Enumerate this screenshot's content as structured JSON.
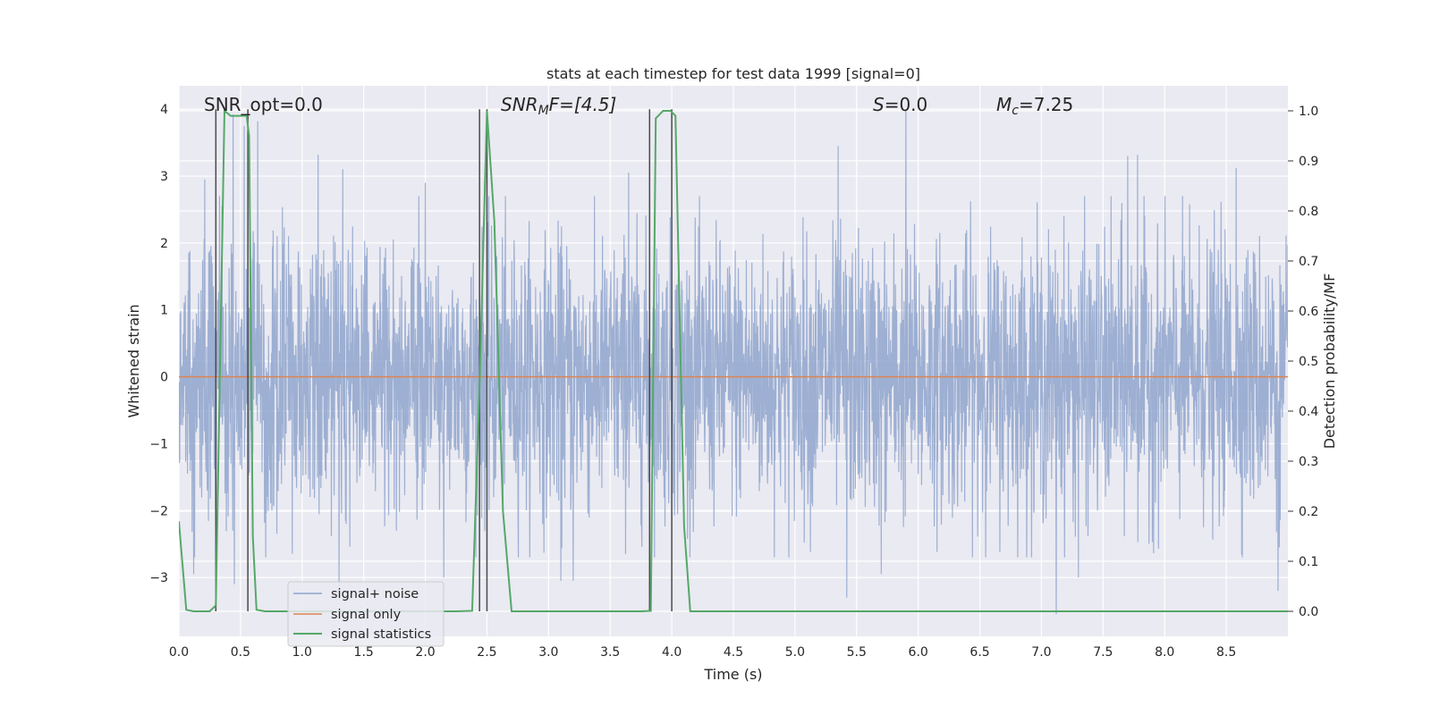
{
  "chart_data": {
    "type": "line",
    "title": "stats at each timestep for test data 1999 [signal=0]",
    "xlabel": "Time (s)",
    "ylabel_left": "Whitened strain",
    "ylabel_right": "Detection probability/MF",
    "xlim": [
      0.0,
      9.0
    ],
    "ylim_left": [
      -3.88,
      4.35
    ],
    "ylim_right": [
      -0.05,
      1.05
    ],
    "xticks": [
      "0.0",
      "0.5",
      "1.0",
      "1.5",
      "2.0",
      "2.5",
      "3.0",
      "3.5",
      "4.0",
      "4.5",
      "5.0",
      "5.5",
      "6.0",
      "6.5",
      "7.0",
      "7.5",
      "8.0",
      "8.5"
    ],
    "xtick_values": [
      0,
      0.5,
      1,
      1.5,
      2,
      2.5,
      3,
      3.5,
      4,
      4.5,
      5,
      5.5,
      6,
      6.5,
      7,
      7.5,
      8,
      8.5
    ],
    "yticks_left": [
      "4",
      "3",
      "2",
      "1",
      "0",
      "−1",
      "−2",
      "−3"
    ],
    "ytick_values_left": [
      4,
      3,
      2,
      1,
      0,
      -1,
      -2,
      -3
    ],
    "yticks_right": [
      "1.0",
      "0.9",
      "0.8",
      "0.7",
      "0.6",
      "0.5",
      "0.4",
      "0.3",
      "0.2",
      "0.1",
      "0.0"
    ],
    "ytick_values_right": [
      1.0,
      0.9,
      0.8,
      0.7,
      0.6,
      0.5,
      0.4,
      0.3,
      0.2,
      0.1,
      0.0
    ],
    "grid": true,
    "legend_position": "lower-left",
    "colors": {
      "noise": "#8fa5cc",
      "signal": "#dd8452",
      "stats": "#55a868",
      "vline": "#4a4a4a",
      "background": "#eaeaf2"
    },
    "series": [
      {
        "name": "signal+ noise",
        "axis": "left",
        "note_style": "dense whitened noise trace",
        "summary": {
          "mean": 0.0,
          "std": 1.0,
          "max": 4.0,
          "min": -3.55
        },
        "peaks": [
          {
            "x": 0.21,
            "y": 2.95
          },
          {
            "x": 0.35,
            "y": 2.55
          },
          {
            "x": 0.44,
            "y": 3.92
          },
          {
            "x": 0.53,
            "y": 3.75
          },
          {
            "x": 0.64,
            "y": 3.82
          },
          {
            "x": 1.13,
            "y": 3.32
          },
          {
            "x": 1.33,
            "y": 3.1
          },
          {
            "x": 2.0,
            "y": 2.9
          },
          {
            "x": 3.65,
            "y": 3.05
          },
          {
            "x": 5.35,
            "y": 3.45
          },
          {
            "x": 5.9,
            "y": 4.0
          },
          {
            "x": 7.7,
            "y": 3.3
          },
          {
            "x": 7.78,
            "y": 3.32
          },
          {
            "x": 8.58,
            "y": 3.12
          }
        ],
        "troughs": [
          {
            "x": 0.12,
            "y": -2.95
          },
          {
            "x": 0.45,
            "y": -3.1
          },
          {
            "x": 1.3,
            "y": -3.25
          },
          {
            "x": 2.15,
            "y": -3.0
          },
          {
            "x": 3.1,
            "y": -3.05
          },
          {
            "x": 3.2,
            "y": -3.05
          },
          {
            "x": 5.42,
            "y": -3.3
          },
          {
            "x": 5.7,
            "y": -2.95
          },
          {
            "x": 7.12,
            "y": -3.55
          },
          {
            "x": 7.3,
            "y": -3.0
          },
          {
            "x": 8.92,
            "y": -3.2
          }
        ]
      },
      {
        "name": "signal only",
        "axis": "left",
        "x": [
          0.0,
          9.0
        ],
        "y": [
          0.0,
          0.0
        ]
      },
      {
        "name": "signal statistics",
        "axis": "right",
        "x": [
          0.0,
          0.06,
          0.12,
          0.18,
          0.25,
          0.3,
          0.37,
          0.42,
          0.46,
          0.5,
          0.55,
          0.57,
          0.6,
          0.63,
          0.7,
          2.25,
          2.38,
          2.44,
          2.5,
          2.56,
          2.63,
          2.7,
          3.75,
          3.83,
          3.87,
          3.93,
          3.99,
          4.03,
          4.1,
          4.15,
          9.0
        ],
        "y": [
          0.18,
          0.003,
          0.0,
          0.0,
          0.0,
          0.012,
          1.0,
          0.99,
          0.99,
          0.99,
          0.99,
          0.95,
          0.15,
          0.003,
          0.0,
          0.0,
          0.001,
          0.45,
          1.0,
          0.78,
          0.2,
          0.0,
          0.0,
          0.001,
          0.985,
          1.0,
          1.0,
          0.99,
          0.17,
          0.0,
          0.0
        ]
      }
    ],
    "vertical_lines_x": [
      0.3,
      0.56,
      2.44,
      2.5,
      3.82,
      4.0
    ],
    "annotations": {
      "snr_opt": "SNR_opt=0.0",
      "snr_mf": "SNR",
      "snr_mf_sub": "M",
      "snr_mf_rest": "F=[4.5]",
      "s_label": "S",
      "s_value": "=0.0",
      "mc_label": "M",
      "mc_sub": "c",
      "mc_value": "=7.25"
    }
  }
}
